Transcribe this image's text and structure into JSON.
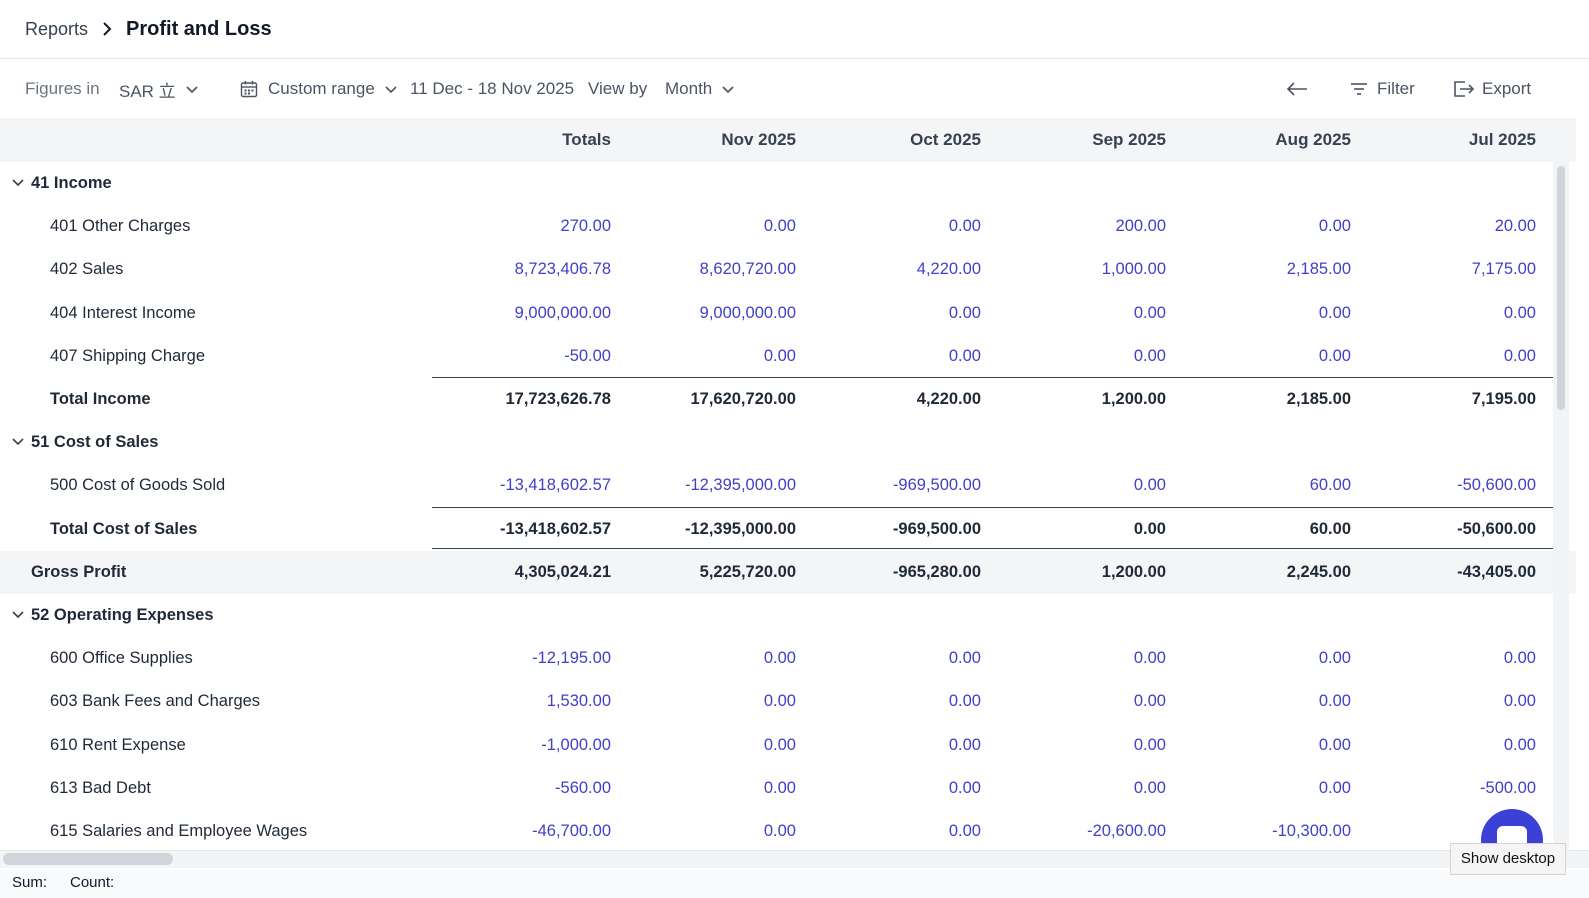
{
  "breadcrumb": {
    "parent": "Reports",
    "current": "Profit and Loss"
  },
  "toolbar": {
    "figures_label": "Figures in",
    "currency": "SAR ⽴",
    "range_type": "Custom range",
    "range_value": "11 Dec - 18 Nov 2025",
    "view_by_label": "View by",
    "view_by_value": "Month",
    "filter_label": "Filter",
    "export_label": "Export"
  },
  "table": {
    "columns": [
      "Totals",
      "Nov 2025",
      "Oct 2025",
      "Sep 2025",
      "Aug 2025",
      "Jul 2025"
    ],
    "rows": [
      {
        "kind": "section",
        "label": "41 Income"
      },
      {
        "kind": "item",
        "label": "401 Other Charges",
        "values": [
          "270.00",
          "0.00",
          "0.00",
          "200.00",
          "0.00",
          "20.00"
        ]
      },
      {
        "kind": "item",
        "label": "402 Sales",
        "values": [
          "8,723,406.78",
          "8,620,720.00",
          "4,220.00",
          "1,000.00",
          "2,185.00",
          "7,175.00"
        ]
      },
      {
        "kind": "item",
        "label": "404 Interest Income",
        "values": [
          "9,000,000.00",
          "9,000,000.00",
          "0.00",
          "0.00",
          "0.00",
          "0.00"
        ]
      },
      {
        "kind": "item",
        "label": "407 Shipping Charge",
        "values": [
          "-50.00",
          "0.00",
          "0.00",
          "0.00",
          "0.00",
          "0.00"
        ]
      },
      {
        "kind": "total",
        "label": "Total Income",
        "values": [
          "17,723,626.78",
          "17,620,720.00",
          "4,220.00",
          "1,200.00",
          "2,185.00",
          "7,195.00"
        ]
      },
      {
        "kind": "section",
        "label": "51 Cost of Sales"
      },
      {
        "kind": "item",
        "label": "500 Cost of Goods Sold",
        "values": [
          "-13,418,602.57",
          "-12,395,000.00",
          "-969,500.00",
          "0.00",
          "60.00",
          "-50,600.00"
        ]
      },
      {
        "kind": "total",
        "label": "Total Cost of Sales",
        "values": [
          "-13,418,602.57",
          "-12,395,000.00",
          "-969,500.00",
          "0.00",
          "60.00",
          "-50,600.00"
        ]
      },
      {
        "kind": "gross",
        "label": "Gross Profit",
        "values": [
          "4,305,024.21",
          "5,225,720.00",
          "-965,280.00",
          "1,200.00",
          "2,245.00",
          "-43,405.00"
        ]
      },
      {
        "kind": "section",
        "label": "52 Operating Expenses"
      },
      {
        "kind": "item",
        "label": "600 Office Supplies",
        "values": [
          "-12,195.00",
          "0.00",
          "0.00",
          "0.00",
          "0.00",
          "0.00"
        ]
      },
      {
        "kind": "item",
        "label": "603 Bank Fees and Charges",
        "values": [
          "1,530.00",
          "0.00",
          "0.00",
          "0.00",
          "0.00",
          "0.00"
        ]
      },
      {
        "kind": "item",
        "label": "610 Rent Expense",
        "values": [
          "-1,000.00",
          "0.00",
          "0.00",
          "0.00",
          "0.00",
          "0.00"
        ]
      },
      {
        "kind": "item",
        "label": "613 Bad Debt",
        "values": [
          "-560.00",
          "0.00",
          "0.00",
          "0.00",
          "0.00",
          "-500.00"
        ]
      },
      {
        "kind": "item",
        "label": "615 Salaries and Employee Wages",
        "values": [
          "-46,700.00",
          "0.00",
          "0.00",
          "-20,600.00",
          "-10,300.00",
          ""
        ]
      }
    ]
  },
  "status": {
    "sum_label": "Sum:",
    "count_label": "Count:"
  },
  "tooltip": {
    "show_desktop": "Show desktop"
  },
  "icons": [
    "chevron-right-icon",
    "chevron-down-icon",
    "calendar-icon",
    "arrow-left-icon",
    "filter-icon",
    "export-icon",
    "chat-icon"
  ]
}
